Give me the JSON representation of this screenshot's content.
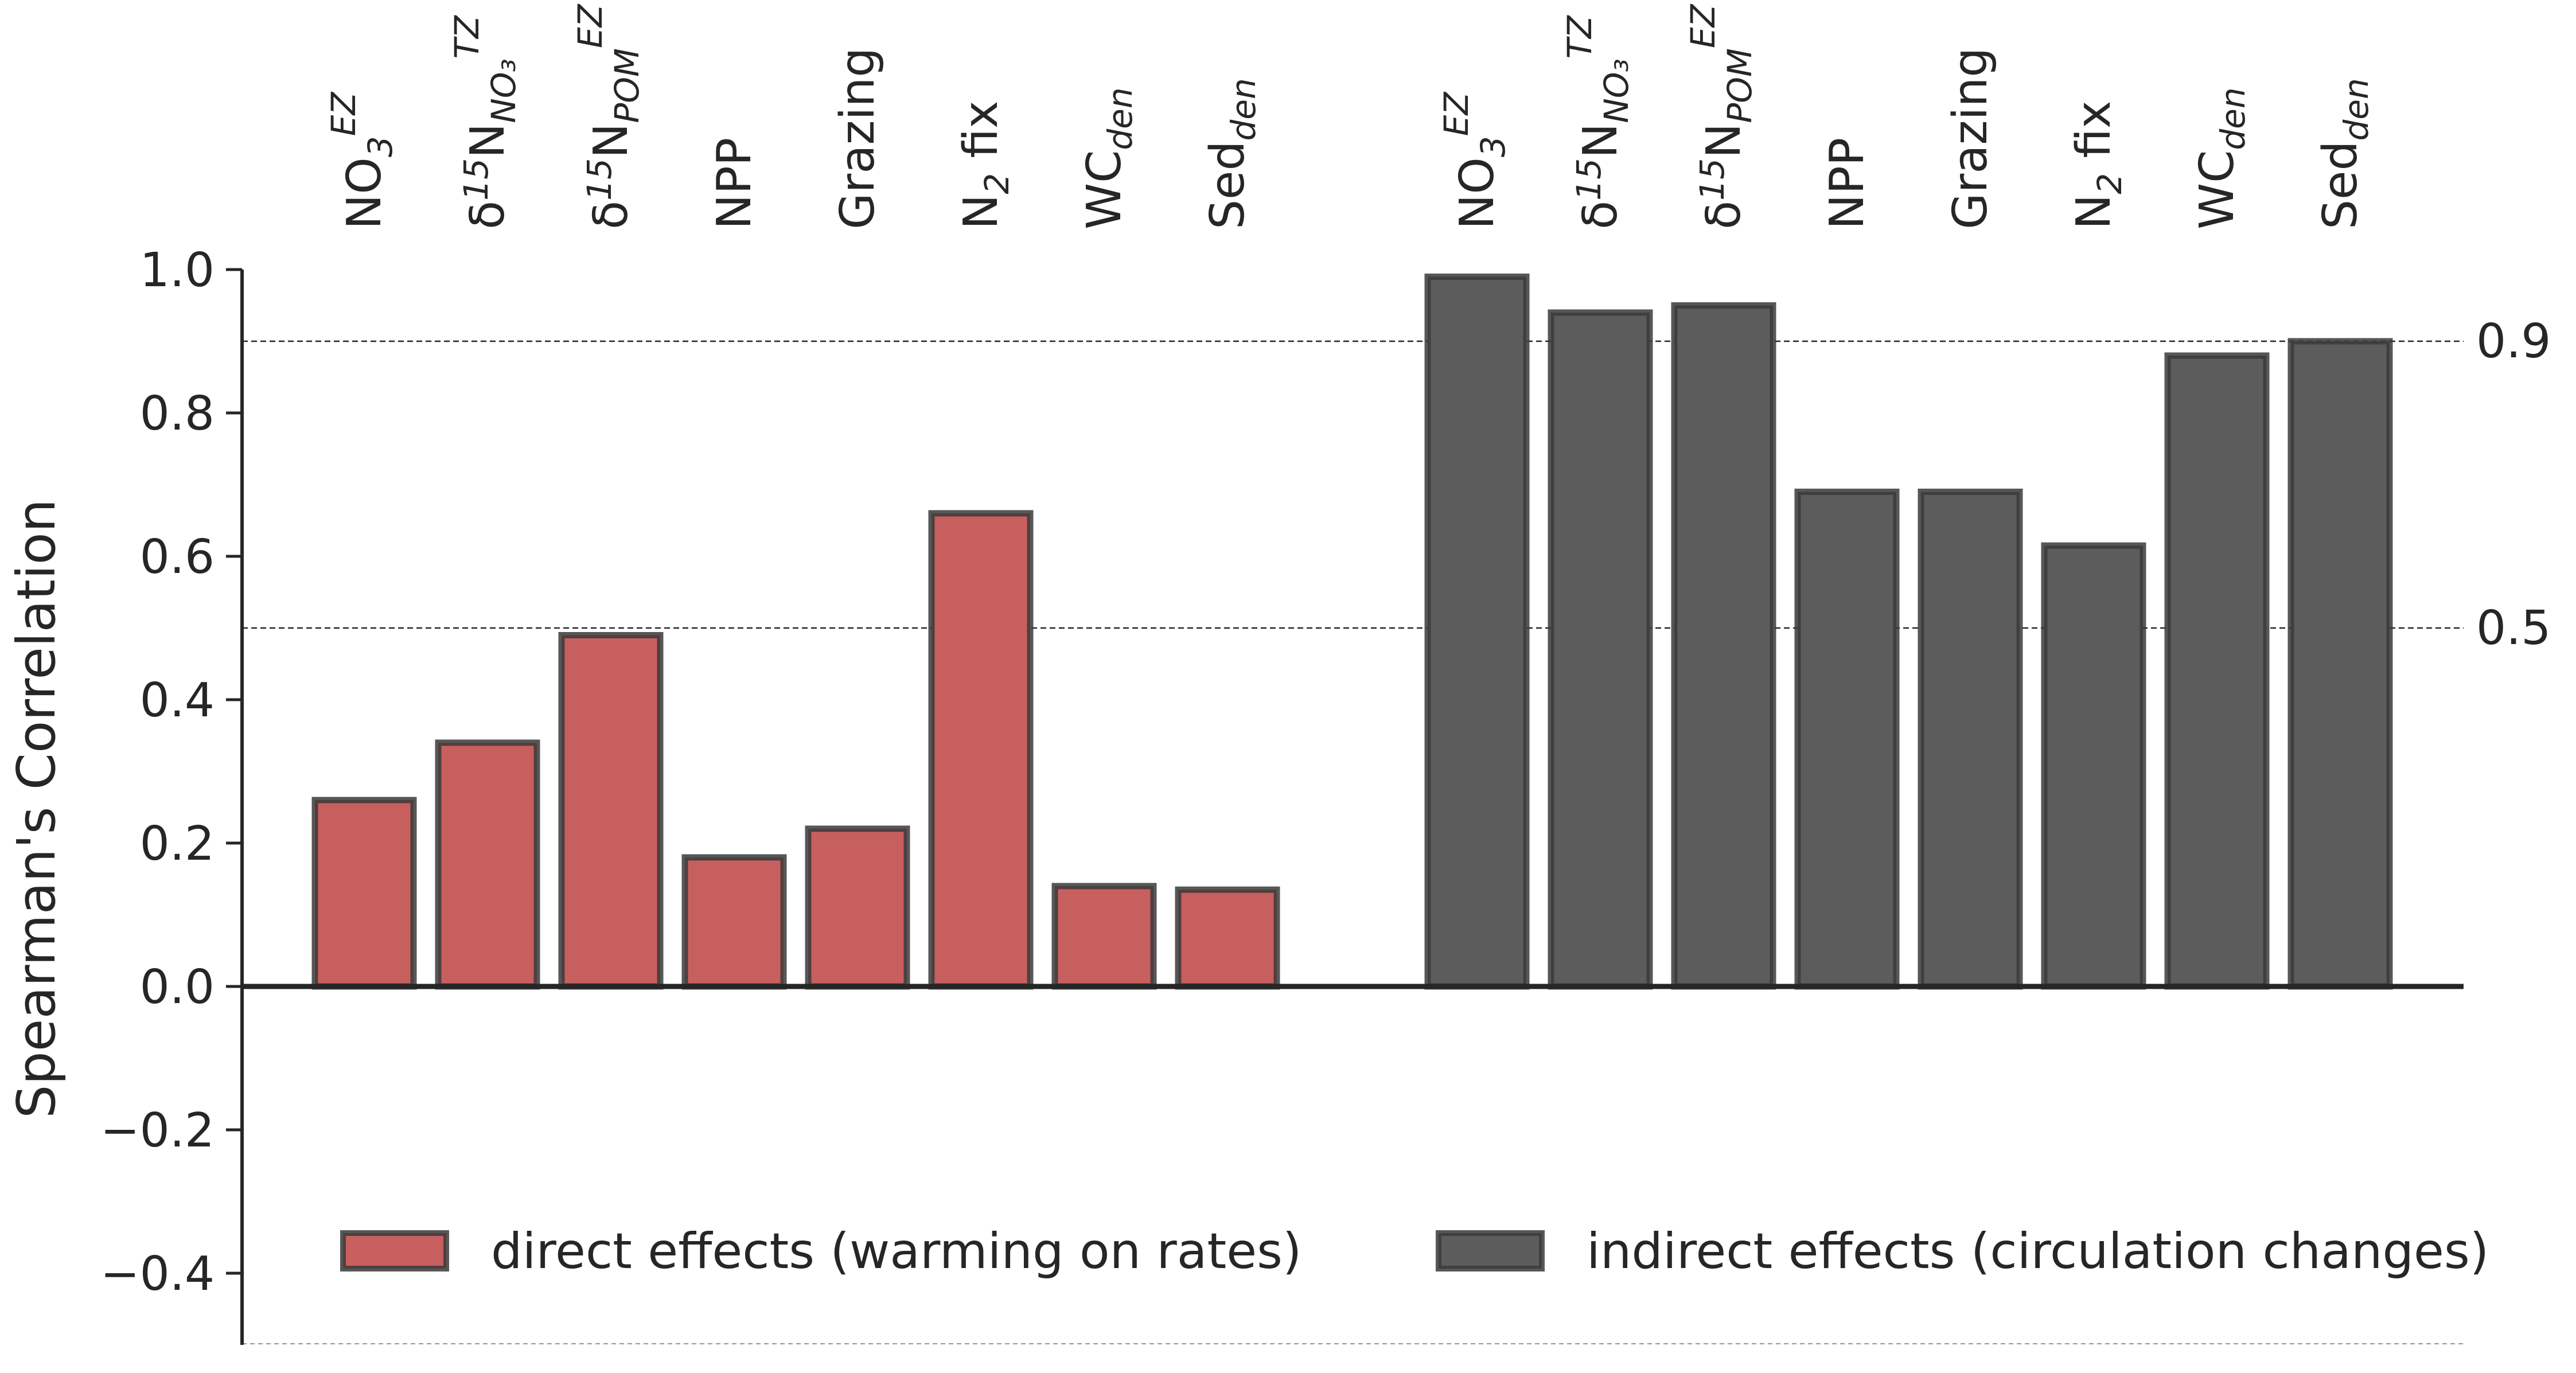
{
  "chart_data": {
    "type": "bar",
    "ylabel": "Spearman's Correlation",
    "ylim": [
      -0.5,
      1.0
    ],
    "yticks": [
      -0.4,
      -0.2,
      0.0,
      0.2,
      0.4,
      0.6,
      0.8,
      1.0
    ],
    "ytick_labels": [
      "−0.4",
      "−0.2",
      "0.0",
      "0.2",
      "0.4",
      "0.6",
      "0.8",
      "1.0"
    ],
    "reference_lines": [
      {
        "value": 0.9,
        "label": "0.9"
      },
      {
        "value": 0.5,
        "label": "0.5"
      }
    ],
    "category_labels": [
      {
        "base": "NO",
        "sub": "3",
        "sup": "EZ"
      },
      {
        "pre": "δ",
        "presup": "15",
        "base": "N",
        "sub": "NO₃",
        "sup": "TZ"
      },
      {
        "pre": "δ",
        "presup": "15",
        "base": "N",
        "sub": "POM",
        "sup": "EZ"
      },
      {
        "base": "NPP"
      },
      {
        "base": "Grazing"
      },
      {
        "base": "N",
        "sub": "2",
        "post": " fix"
      },
      {
        "base": "WC",
        "sub": "den"
      },
      {
        "base": "Sed",
        "sub": "den"
      }
    ],
    "series": [
      {
        "name": "direct effects (warming on rates)",
        "color": "#c85f5f",
        "values": [
          0.26,
          0.34,
          0.49,
          0.18,
          0.22,
          0.66,
          0.14,
          0.135
        ]
      },
      {
        "name": "indirect effects (circulation changes)",
        "color": "#5c5c5c",
        "values": [
          0.99,
          0.94,
          0.95,
          0.69,
          0.69,
          0.615,
          0.88,
          0.9
        ]
      }
    ],
    "grid": false,
    "legend_position": "bottom"
  }
}
